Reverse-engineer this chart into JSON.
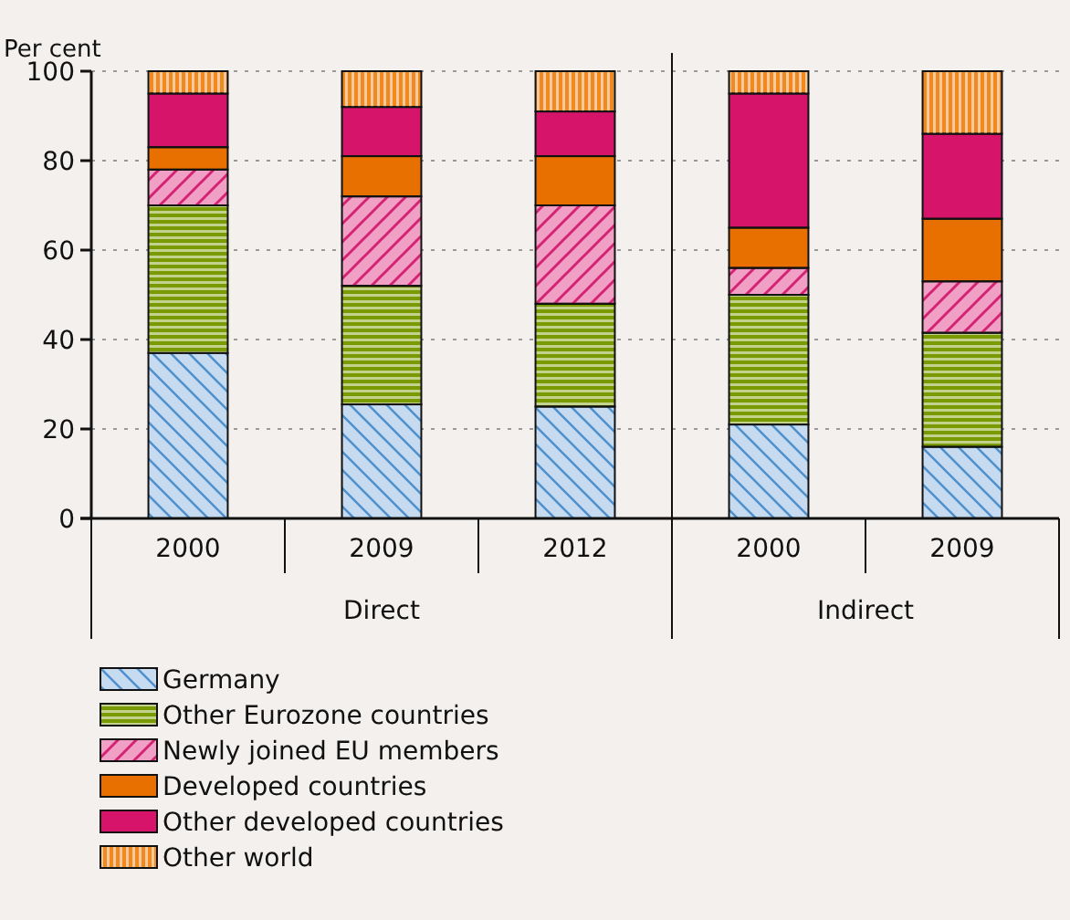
{
  "chart_data": [
    {
      "type": "bar",
      "stacked": true,
      "ylabel": "Per cent",
      "xlabel": "Direct",
      "categories": [
        "2000",
        "2009",
        "2012"
      ],
      "series": [
        {
          "name": "Germany",
          "color": "#c6dbef",
          "values": [
            37,
            25.5,
            25
          ]
        },
        {
          "name": "Other Eurozone countries",
          "color": "#7a9a01",
          "values": [
            33,
            26.5,
            23
          ]
        },
        {
          "name": "Newly joined EU members",
          "color": "#f0a0c4",
          "values": [
            8,
            20,
            22
          ]
        },
        {
          "name": "Developed countries",
          "color": "#e87000",
          "values": [
            5,
            9,
            11
          ]
        },
        {
          "name": "Other developed countries",
          "color": "#d6156a",
          "values": [
            12,
            11,
            10
          ]
        },
        {
          "name": "Other world",
          "color": "#f08a20",
          "values": [
            5,
            8,
            9
          ]
        }
      ],
      "ylim": [
        0,
        100
      ],
      "yticks": [
        0,
        20,
        40,
        60,
        80,
        100
      ],
      "grid": "y",
      "legend": "bottom left"
    },
    {
      "type": "bar",
      "stacked": true,
      "xlabel": "Indirect",
      "categories": [
        "2000",
        "2009"
      ],
      "series": [
        {
          "color": "#c6dbef",
          "values": [
            21,
            16
          ]
        },
        {
          "color": "#7a9a01",
          "values": [
            29,
            25.5
          ]
        },
        {
          "color": "#f0a0c4",
          "values": [
            6,
            11.5
          ]
        },
        {
          "color": "#e87000",
          "values": [
            9,
            14
          ]
        },
        {
          "color": "#d6156a",
          "values": [
            30,
            19
          ]
        },
        {
          "color": "#f08a20",
          "values": [
            5,
            14
          ]
        }
      ],
      "ylim": [
        0,
        100
      ],
      "yticks": [
        0,
        20,
        40,
        60,
        80,
        100
      ],
      "grid": "y",
      "tick_labels": "x"
    }
  ]
}
